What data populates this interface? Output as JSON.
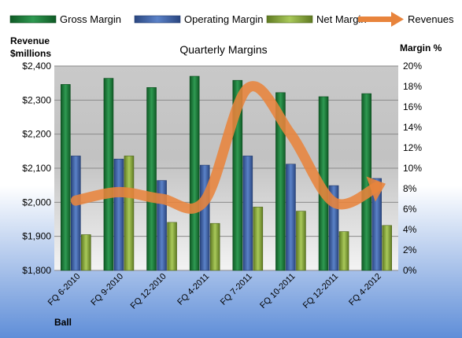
{
  "chart_data": {
    "type": "bar",
    "title": "Quarterly Margins",
    "company": "Ball",
    "categories": [
      "FQ 6-2010",
      "FQ 9-2010",
      "FQ 12-2010",
      "FQ 4-2011",
      "FQ 7-2011",
      "FQ 10-2011",
      "FQ 12-2011",
      "FQ 4-2012"
    ],
    "left_axis": {
      "label_line1": "Revenue",
      "label_line2": "$millions",
      "ylim": [
        1800,
        2400
      ],
      "ticks": [
        1800,
        1900,
        2000,
        2100,
        2200,
        2300,
        2400
      ],
      "tick_labels": [
        "$1,800",
        "$1,900",
        "$2,000",
        "$2,100",
        "$2,200",
        "$2,300",
        "$2,400"
      ]
    },
    "right_axis": {
      "label": "Margin %",
      "ylim": [
        0,
        20
      ],
      "ticks": [
        0,
        2,
        4,
        6,
        8,
        10,
        12,
        14,
        16,
        18,
        20
      ],
      "tick_labels": [
        "0%",
        "2%",
        "4%",
        "6%",
        "8%",
        "10%",
        "12%",
        "14%",
        "16%",
        "18%",
        "20%"
      ]
    },
    "series": [
      {
        "name": "Gross Margin",
        "type": "bar",
        "axis": "right",
        "color": "#1e7a3c",
        "values": [
          18.2,
          18.8,
          17.9,
          19.0,
          18.6,
          17.4,
          17.0,
          17.3
        ]
      },
      {
        "name": "Operating Margin",
        "type": "bar",
        "axis": "right",
        "color": "#3f62a8",
        "values": [
          11.2,
          10.9,
          8.8,
          10.3,
          11.2,
          10.4,
          8.3,
          9.0
        ]
      },
      {
        "name": "Net Margin",
        "type": "bar",
        "axis": "right",
        "color": "#8fad3f",
        "values": [
          3.5,
          11.2,
          4.7,
          4.6,
          6.2,
          5.8,
          3.8,
          4.4
        ]
      },
      {
        "name": "Revenues",
        "type": "line",
        "axis": "left",
        "color": "#e8843c",
        "values": [
          2005,
          2030,
          2010,
          2005,
          2335,
          2200,
          2000,
          2045
        ]
      }
    ],
    "legend_position": "top",
    "grid": "horizontal"
  }
}
